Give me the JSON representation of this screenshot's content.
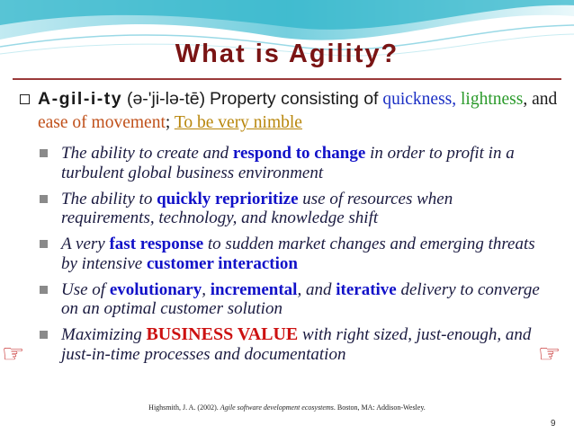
{
  "slide": {
    "title": "What is Agility?",
    "definition": {
      "word": "A-gil-i-ty",
      "pronunciation": "(ə-'ji-lə-tē)",
      "prefix": "Property consisting of",
      "quickness": "quickness,",
      "lightness": "lightness",
      "and": ", and",
      "ease": "ease of movement",
      "semicolon": ";",
      "nimble": "To be very nimble"
    },
    "bullets": [
      {
        "a": "The ability to create and ",
        "h": "respond to change",
        "b": " in order to profit in a turbulent global business environment"
      },
      {
        "a": "The ability to ",
        "h": "quickly reprioritize",
        "b": " use of resources when requirements, technology, and knowledge shift"
      },
      {
        "a": "A very ",
        "h": "fast response",
        "b": " to sudden market changes and emerging threats by intensive ",
        "h2": "customer interaction"
      },
      {
        "a": "Use of ",
        "h": "evolutionary",
        "b": ", ",
        "h2": "incremental",
        "c": ", and ",
        "h3": "iterative",
        "d": " delivery to converge on an optimal customer solution"
      },
      {
        "a": "Maximizing ",
        "h": "BUSINESS VALUE",
        "b": " with right sized, just-enough, and just-in-time processes and documentation"
      }
    ],
    "pointer_icon": "☞",
    "citation": {
      "pre": "Highsmith, J. A. (2002). ",
      "italic": "Agile software development ecosystems",
      "post": ". Boston, MA: Addison-Wesley."
    },
    "page_number": "9",
    "colors": {
      "title": "#7a1414",
      "highlight_blue": "#1111c8",
      "highlight_red": "#cc1111",
      "bullet_gray": "#8a8a8a",
      "wave_teal": "#2bb3c9"
    }
  }
}
